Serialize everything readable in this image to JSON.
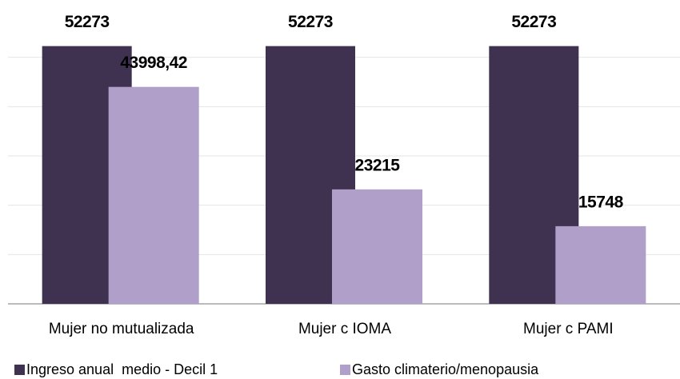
{
  "chart_data": {
    "type": "bar",
    "categories": [
      "Mujer no mutualizada",
      "Mujer c IOMA",
      "Mujer c PAMI"
    ],
    "series": [
      {
        "name": "Ingreso anual  medio - Decil 1",
        "color": "#3f3150",
        "values": [
          52273,
          52273,
          52273
        ],
        "value_labels": [
          "52273",
          "52273",
          "52273"
        ]
      },
      {
        "name": "Gasto climaterio/menopausia",
        "color": "#b09fc8",
        "values": [
          43998.42,
          23215,
          15748
        ],
        "value_labels": [
          "43998,42",
          "23215",
          "15748"
        ]
      }
    ],
    "ylim": [
      0,
      60000
    ],
    "yticks": [
      0,
      10000,
      20000,
      30000,
      40000,
      50000
    ],
    "grid": true,
    "legend": "bottom"
  }
}
